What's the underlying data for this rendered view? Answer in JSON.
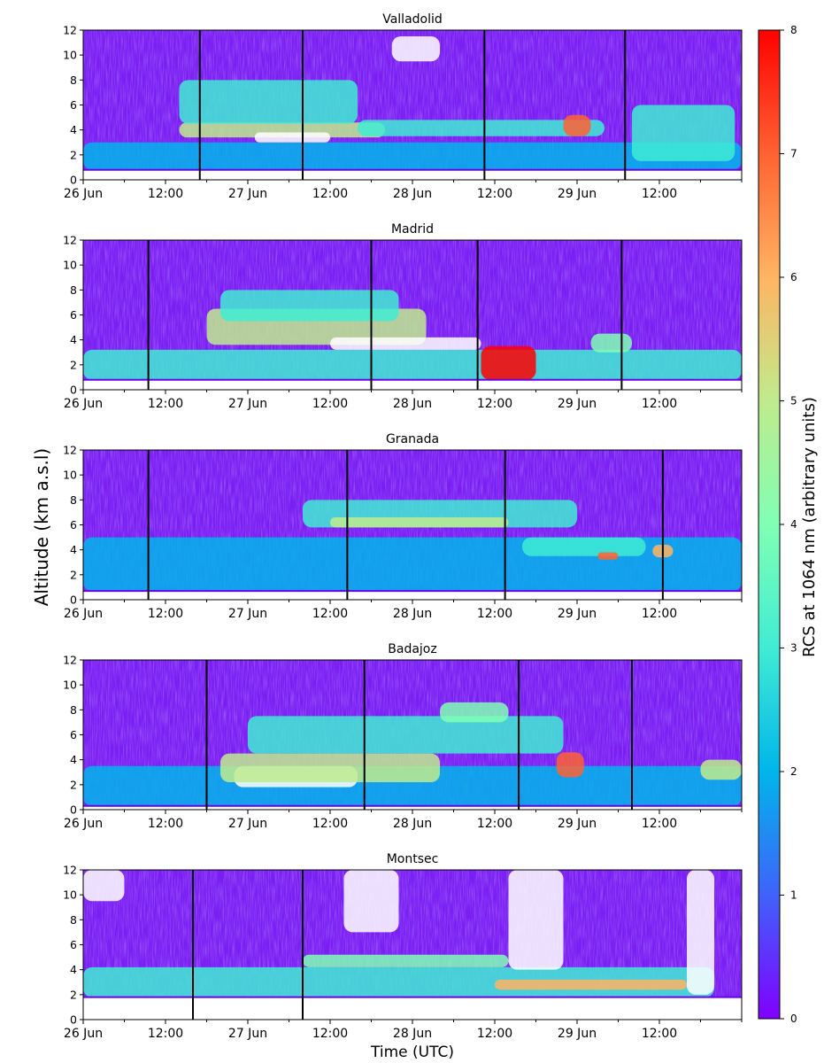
{
  "figure": {
    "ylabel": "Altitude (km a.s.l)",
    "xlabel": "Time (UTC)",
    "colorbar": {
      "label": "RCS at 1064 nm (arbitrary units)",
      "ticks": [
        0,
        1,
        2,
        3,
        4,
        5,
        6,
        7,
        8
      ],
      "tick_labels": [
        "0",
        "1",
        "2",
        "3",
        "4",
        "5",
        "6",
        "7",
        "8"
      ],
      "range": [
        0,
        8
      ],
      "colormap": "rainbow",
      "colors": [
        "#8000ff",
        "#4062fa",
        "#00b5eb",
        "#40ecd4",
        "#80ffb4",
        "#c0eb8d",
        "#ffb462",
        "#ff6232",
        "#ff0000"
      ]
    }
  },
  "chart_data": [
    {
      "type": "heatmap",
      "title": "Valladolid",
      "x_range_hours": [
        0,
        96
      ],
      "ylim": [
        0,
        12
      ],
      "y_ticks": [
        0,
        2,
        4,
        6,
        8,
        10,
        12
      ],
      "y_tick_labels": [
        "0",
        "2",
        "4",
        "6",
        "8",
        "10",
        "12"
      ],
      "x_ticks_hours": [
        0,
        12,
        24,
        36,
        48,
        60,
        72,
        84
      ],
      "x_tick_labels": [
        "26 Jun",
        "12:00",
        "27 Jun",
        "12:00",
        "28 Jun",
        "12:00",
        "29 Jun",
        "12:00"
      ],
      "ground_km": 0.8,
      "vertical_lines_hours": [
        17,
        32,
        58.5,
        79
      ],
      "layers": [
        {
          "x": [
            0,
            96
          ],
          "y0": 0.8,
          "y1": 3.0,
          "value": 2.3
        },
        {
          "x": [
            14,
            44
          ],
          "y0": 3.4,
          "y1": 4.6,
          "value": 4.5
        },
        {
          "x": [
            25,
            36
          ],
          "y0": 3.0,
          "y1": 3.8,
          "value": 8.5
        },
        {
          "x": [
            14,
            40
          ],
          "y0": 4.5,
          "y1": 8.0,
          "value": 3.2
        },
        {
          "x": [
            40,
            76
          ],
          "y0": 3.5,
          "y1": 4.8,
          "value": 3.3
        },
        {
          "x": [
            70,
            74
          ],
          "y0": 3.5,
          "y1": 5.2,
          "value": 6.5
        },
        {
          "x": [
            80,
            95
          ],
          "y0": 1.5,
          "y1": 6.0,
          "value": 3.0
        },
        {
          "x": [
            45,
            52
          ],
          "y0": 9.5,
          "y1": 11.5,
          "value": 9.0
        }
      ]
    },
    {
      "type": "heatmap",
      "title": "Madrid",
      "x_range_hours": [
        0,
        96
      ],
      "ylim": [
        0,
        12
      ],
      "y_ticks": [
        0,
        2,
        4,
        6,
        8,
        10,
        12
      ],
      "y_tick_labels": [
        "0",
        "2",
        "4",
        "6",
        "8",
        "10",
        "12"
      ],
      "x_ticks_hours": [
        0,
        12,
        24,
        36,
        48,
        60,
        72,
        84
      ],
      "x_tick_labels": [
        "26 Jun",
        "12:00",
        "27 Jun",
        "12:00",
        "28 Jun",
        "12:00",
        "29 Jun",
        "12:00"
      ],
      "ground_km": 0.8,
      "vertical_lines_hours": [
        9.5,
        42,
        57.5,
        78.5
      ],
      "layers": [
        {
          "x": [
            0,
            96
          ],
          "y0": 0.8,
          "y1": 3.2,
          "value": 2.8
        },
        {
          "x": [
            18,
            50
          ],
          "y0": 3.6,
          "y1": 6.5,
          "value": 4.8
        },
        {
          "x": [
            36,
            58
          ],
          "y0": 3.2,
          "y1": 4.2,
          "value": 8.5
        },
        {
          "x": [
            58,
            66
          ],
          "y0": 0.8,
          "y1": 3.5,
          "value": 7.5
        },
        {
          "x": [
            20,
            46
          ],
          "y0": 5.5,
          "y1": 8.0,
          "value": 3.0
        },
        {
          "x": [
            74,
            80
          ],
          "y0": 3.0,
          "y1": 4.5,
          "value": 4.0
        }
      ]
    },
    {
      "type": "heatmap",
      "title": "Granada",
      "x_range_hours": [
        0,
        96
      ],
      "ylim": [
        0,
        12
      ],
      "y_ticks": [
        0,
        2,
        4,
        6,
        8,
        10,
        12
      ],
      "y_tick_labels": [
        "0",
        "2",
        "4",
        "6",
        "8",
        "10",
        "12"
      ],
      "x_ticks_hours": [
        0,
        12,
        24,
        36,
        48,
        60,
        72,
        84
      ],
      "x_tick_labels": [
        "26 Jun",
        "12:00",
        "27 Jun",
        "12:00",
        "28 Jun",
        "12:00",
        "29 Jun",
        "12:00"
      ],
      "ground_km": 0.7,
      "vertical_lines_hours": [
        9.5,
        38.5,
        61.5,
        84.5
      ],
      "layers": [
        {
          "x": [
            0,
            96
          ],
          "y0": 0.7,
          "y1": 5.0,
          "value": 2.2
        },
        {
          "x": [
            32,
            72
          ],
          "y0": 5.8,
          "y1": 8.0,
          "value": 3.4
        },
        {
          "x": [
            36,
            62
          ],
          "y0": 5.8,
          "y1": 6.6,
          "value": 4.8
        },
        {
          "x": [
            64,
            82
          ],
          "y0": 3.5,
          "y1": 5.0,
          "value": 3.0
        },
        {
          "x": [
            75,
            78
          ],
          "y0": 3.2,
          "y1": 3.8,
          "value": 6.5
        },
        {
          "x": [
            83,
            86
          ],
          "y0": 3.4,
          "y1": 4.4,
          "value": 6.2
        }
      ]
    },
    {
      "type": "heatmap",
      "title": "Badajoz",
      "x_range_hours": [
        0,
        96
      ],
      "ylim": [
        0,
        12
      ],
      "y_ticks": [
        0,
        2,
        4,
        6,
        8,
        10,
        12
      ],
      "y_tick_labels": [
        "0",
        "2",
        "4",
        "6",
        "8",
        "10",
        "12"
      ],
      "x_ticks_hours": [
        0,
        12,
        24,
        36,
        48,
        60,
        72,
        84
      ],
      "x_tick_labels": [
        "26 Jun",
        "12:00",
        "27 Jun",
        "12:00",
        "28 Jun",
        "12:00",
        "29 Jun",
        "12:00"
      ],
      "ground_km": 0.3,
      "vertical_lines_hours": [
        18,
        41,
        63.5,
        80
      ],
      "layers": [
        {
          "x": [
            0,
            96
          ],
          "y0": 0.3,
          "y1": 3.5,
          "value": 2.4
        },
        {
          "x": [
            22,
            40
          ],
          "y0": 1.8,
          "y1": 3.5,
          "value": 8.5
        },
        {
          "x": [
            20,
            52
          ],
          "y0": 2.2,
          "y1": 4.5,
          "value": 4.6
        },
        {
          "x": [
            24,
            70
          ],
          "y0": 4.5,
          "y1": 7.5,
          "value": 3.2
        },
        {
          "x": [
            52,
            62
          ],
          "y0": 7.0,
          "y1": 8.6,
          "value": 3.8
        },
        {
          "x": [
            69,
            73
          ],
          "y0": 2.6,
          "y1": 4.6,
          "value": 6.6
        },
        {
          "x": [
            90,
            96
          ],
          "y0": 2.4,
          "y1": 4.0,
          "value": 5.0
        }
      ]
    },
    {
      "type": "heatmap",
      "title": "Montsec",
      "x_range_hours": [
        0,
        96
      ],
      "ylim": [
        0,
        12
      ],
      "y_ticks": [
        0,
        2,
        4,
        6,
        8,
        10,
        12
      ],
      "y_tick_labels": [
        "0",
        "2",
        "4",
        "6",
        "8",
        "10",
        "12"
      ],
      "x_ticks_hours": [
        0,
        12,
        24,
        36,
        48,
        60,
        72,
        84
      ],
      "x_tick_labels": [
        "26 Jun",
        "12:00",
        "27 Jun",
        "12:00",
        "28 Jun",
        "12:00",
        "29 Jun",
        "12:00"
      ],
      "ground_km": 1.8,
      "vertical_lines_hours": [
        16,
        32
      ],
      "layers": [
        {
          "x": [
            0,
            92
          ],
          "y0": 1.8,
          "y1": 4.2,
          "value": 2.6
        },
        {
          "x": [
            32,
            62
          ],
          "y0": 4.2,
          "y1": 5.2,
          "value": 3.5
        },
        {
          "x": [
            60,
            88
          ],
          "y0": 2.4,
          "y1": 3.2,
          "value": 6.0
        },
        {
          "x": [
            0,
            6
          ],
          "y0": 9.5,
          "y1": 12.0,
          "value": 9.0
        },
        {
          "x": [
            38,
            46
          ],
          "y0": 7.0,
          "y1": 12.0,
          "value": 9.0
        },
        {
          "x": [
            62,
            70
          ],
          "y0": 4.0,
          "y1": 12.0,
          "value": 9.0
        },
        {
          "x": [
            88,
            92
          ],
          "y0": 2.0,
          "y1": 12.0,
          "value": 9.0
        }
      ]
    }
  ]
}
